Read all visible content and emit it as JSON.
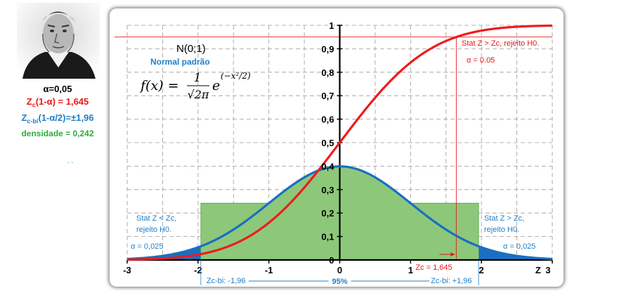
{
  "left_panel": {
    "alpha": "α=0,05",
    "zc_prefix": "Z",
    "zc_sub": "c",
    "zc_suffix": "(1-α) = 1,645",
    "zcbi_prefix": "Z",
    "zcbi_sub": "c-bi",
    "zcbi_suffix": "(1-α/2)=±1,96",
    "density": "densidade = 0,242",
    "dots": ". ."
  },
  "chart_data": {
    "type": "line",
    "x_range": [
      -3,
      3
    ],
    "y_range": [
      0,
      1
    ],
    "x_ticks": [
      "-3",
      "-2",
      "-1",
      "0",
      "1",
      "2",
      "3"
    ],
    "y_ticks": [
      "0",
      "0,1",
      "0,2",
      "0,3",
      "0,4",
      "0,5",
      "0,6",
      "0,7",
      "0,8",
      "0,9",
      "1"
    ],
    "x_axis_label": "Z",
    "grid": true,
    "series": [
      {
        "kind": "pdf",
        "color": "#1a6fc0",
        "mean": 0,
        "sd": 1
      },
      {
        "kind": "cdf",
        "color": "#ee1c1c",
        "mean": 0,
        "sd": 1
      }
    ],
    "band": {
      "x_from": -1.96,
      "x_to": 1.96,
      "height": 0.242,
      "color": "#8dc87a"
    },
    "critical_values": {
      "zc": 1.645,
      "zc_bi": 1.96,
      "cdf_at_zc": 0.95
    },
    "labels": {
      "dist": "N(0;1)",
      "normal": "Normal padrão",
      "right_test": "Stat Z > Zc, rejeito H0.",
      "right_alpha": "α = 0.05",
      "left_bi_1": "Stat Z < Zc,",
      "left_bi_2": "rejeito H0.",
      "left_bi_alpha": "α = 0,025",
      "right_bi_1": "Stat Z > Zc,",
      "right_bi_2": "rejeito H0.",
      "right_bi_alpha": "α = 0,025",
      "zc_label": "Zc = 1,645",
      "zcbi_neg": "Zc-bi: -1,96",
      "zcbi_pos": "Zc-bi: +1,96",
      "pct": "95%"
    },
    "formula": {
      "lhs": "f(x) =",
      "num": "1",
      "den": "√2π",
      "base": "e",
      "exp": "(−x²/2)"
    }
  }
}
